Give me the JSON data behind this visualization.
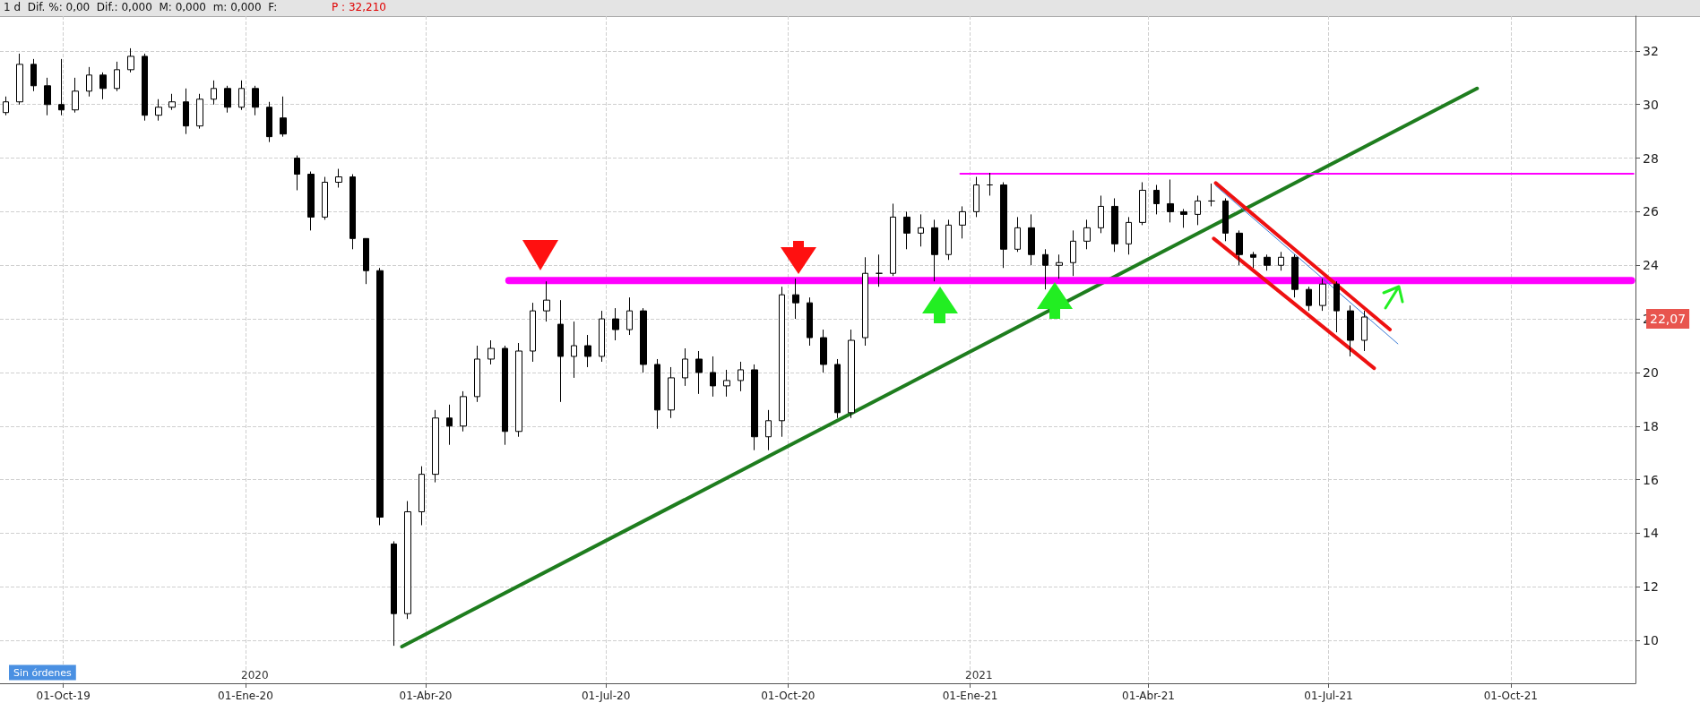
{
  "chart_data": {
    "type": "candlestick",
    "title": "1 d  Dif. %: 0,00  Dif.: 0,000  M: 0,000  m: 0,000  F:",
    "subtitle": "P : 32,210",
    "x": [
      "2019-09-02",
      "2019-09-09",
      "2019-09-16",
      "2019-09-23",
      "2019-09-30",
      "2019-10-07",
      "2019-10-14",
      "2019-10-21",
      "2019-10-28",
      "2019-11-04",
      "2019-11-11",
      "2019-11-18",
      "2019-11-25",
      "2019-12-02",
      "2019-12-09",
      "2019-12-16",
      "2019-12-23",
      "2019-12-30",
      "2020-01-06",
      "2020-01-13",
      "2020-01-20",
      "2020-01-27",
      "2020-02-03",
      "2020-02-10",
      "2020-02-17",
      "2020-02-24",
      "2020-03-02",
      "2020-03-09",
      "2020-03-16",
      "2020-03-23",
      "2020-03-30",
      "2020-04-06",
      "2020-04-13",
      "2020-04-20",
      "2020-04-27",
      "2020-05-04",
      "2020-05-11",
      "2020-05-18",
      "2020-05-25",
      "2020-06-01",
      "2020-06-08",
      "2020-06-15",
      "2020-06-22",
      "2020-06-29",
      "2020-07-06",
      "2020-07-13",
      "2020-07-20",
      "2020-07-27",
      "2020-08-03",
      "2020-08-10",
      "2020-08-17",
      "2020-08-24",
      "2020-08-31",
      "2020-09-07",
      "2020-09-14",
      "2020-09-21",
      "2020-09-28",
      "2020-10-05",
      "2020-10-12",
      "2020-10-19",
      "2020-10-26",
      "2020-11-02",
      "2020-11-09",
      "2020-11-16",
      "2020-11-23",
      "2020-11-30",
      "2020-12-07",
      "2020-12-14",
      "2020-12-21",
      "2020-12-28",
      "2021-01-04",
      "2021-01-11",
      "2021-01-18",
      "2021-01-25",
      "2021-02-01",
      "2021-02-08",
      "2021-02-15",
      "2021-02-22",
      "2021-03-01",
      "2021-03-08",
      "2021-03-15",
      "2021-03-22",
      "2021-03-29",
      "2021-04-05",
      "2021-04-12",
      "2021-04-19",
      "2021-04-26",
      "2021-05-03",
      "2021-05-10",
      "2021-05-17",
      "2021-05-24",
      "2021-05-31",
      "2021-06-07",
      "2021-06-14",
      "2021-06-21",
      "2021-06-28",
      "2021-07-05",
      "2021-07-12",
      "2021-07-19"
    ],
    "ohlc": [
      [
        29.7,
        30.3,
        29.6,
        30.1
      ],
      [
        30.1,
        31.9,
        30.0,
        31.5
      ],
      [
        31.5,
        31.7,
        30.5,
        30.7
      ],
      [
        30.7,
        31.0,
        29.6,
        30.0
      ],
      [
        30.0,
        31.7,
        29.6,
        29.8
      ],
      [
        29.8,
        31.0,
        29.7,
        30.5
      ],
      [
        30.5,
        31.4,
        30.3,
        31.1
      ],
      [
        31.1,
        31.2,
        30.2,
        30.6
      ],
      [
        30.6,
        31.6,
        30.5,
        31.3
      ],
      [
        31.3,
        32.1,
        31.2,
        31.8
      ],
      [
        31.8,
        31.9,
        29.4,
        29.6
      ],
      [
        29.6,
        30.2,
        29.4,
        29.9
      ],
      [
        29.9,
        30.4,
        29.8,
        30.1
      ],
      [
        30.1,
        30.6,
        28.9,
        29.2
      ],
      [
        29.2,
        30.4,
        29.1,
        30.2
      ],
      [
        30.2,
        30.9,
        30.0,
        30.6
      ],
      [
        30.6,
        30.7,
        29.7,
        29.9
      ],
      [
        29.9,
        30.9,
        29.8,
        30.6
      ],
      [
        30.6,
        30.7,
        29.6,
        29.9
      ],
      [
        29.9,
        30.1,
        28.6,
        28.8
      ],
      [
        29.5,
        30.3,
        28.8,
        28.9
      ],
      [
        28.0,
        28.1,
        26.8,
        27.4
      ],
      [
        27.4,
        27.5,
        25.3,
        25.8
      ],
      [
        25.8,
        27.3,
        25.7,
        27.1
      ],
      [
        27.1,
        27.6,
        26.9,
        27.3
      ],
      [
        27.3,
        27.4,
        24.6,
        25.0
      ],
      [
        25.0,
        25.0,
        23.3,
        23.8
      ],
      [
        23.8,
        23.9,
        14.3,
        14.6
      ],
      [
        13.6,
        13.7,
        9.8,
        11.0
      ],
      [
        11.0,
        15.2,
        10.8,
        14.8
      ],
      [
        14.8,
        16.5,
        14.3,
        16.2
      ],
      [
        16.2,
        18.6,
        15.9,
        18.3
      ],
      [
        18.3,
        18.8,
        17.3,
        18.0
      ],
      [
        18.0,
        19.3,
        17.8,
        19.1
      ],
      [
        19.1,
        21.0,
        18.9,
        20.5
      ],
      [
        20.5,
        21.2,
        20.3,
        20.9
      ],
      [
        20.9,
        21.0,
        17.3,
        17.8
      ],
      [
        17.8,
        21.1,
        17.6,
        20.8
      ],
      [
        20.8,
        22.6,
        20.4,
        22.3
      ],
      [
        22.3,
        23.4,
        21.9,
        22.7
      ],
      [
        21.8,
        22.7,
        18.9,
        20.6
      ],
      [
        20.6,
        21.9,
        19.8,
        21.0
      ],
      [
        21.0,
        21.4,
        20.2,
        20.6
      ],
      [
        20.6,
        22.3,
        20.4,
        22.0
      ],
      [
        22.0,
        22.4,
        21.2,
        21.6
      ],
      [
        21.6,
        22.8,
        21.4,
        22.3
      ],
      [
        22.3,
        22.4,
        20.0,
        20.3
      ],
      [
        20.3,
        20.5,
        17.9,
        18.6
      ],
      [
        18.6,
        20.2,
        18.3,
        19.8
      ],
      [
        19.8,
        20.9,
        19.5,
        20.5
      ],
      [
        20.5,
        20.8,
        19.2,
        20.0
      ],
      [
        20.0,
        20.6,
        19.1,
        19.5
      ],
      [
        19.5,
        20.1,
        19.1,
        19.7
      ],
      [
        19.7,
        20.4,
        19.3,
        20.1
      ],
      [
        20.1,
        20.3,
        17.1,
        17.6
      ],
      [
        17.6,
        18.6,
        17.1,
        18.2
      ],
      [
        18.2,
        23.2,
        17.6,
        22.9
      ],
      [
        22.9,
        23.5,
        22.0,
        22.6
      ],
      [
        22.6,
        22.8,
        21.0,
        21.3
      ],
      [
        21.3,
        21.6,
        20.0,
        20.3
      ],
      [
        20.3,
        20.5,
        18.3,
        18.5
      ],
      [
        18.5,
        21.6,
        18.3,
        21.2
      ],
      [
        21.3,
        24.3,
        21.0,
        23.7
      ],
      [
        23.7,
        24.4,
        23.2,
        23.7
      ],
      [
        23.7,
        26.3,
        23.6,
        25.8
      ],
      [
        25.8,
        26.0,
        24.6,
        25.2
      ],
      [
        25.2,
        25.9,
        24.7,
        25.4
      ],
      [
        25.4,
        25.7,
        23.4,
        24.4
      ],
      [
        24.4,
        25.7,
        24.2,
        25.5
      ],
      [
        25.5,
        26.2,
        25.0,
        26.0
      ],
      [
        26.0,
        27.3,
        25.8,
        27.0
      ],
      [
        27.0,
        27.45,
        26.6,
        27.0
      ],
      [
        27.0,
        27.1,
        23.9,
        24.6
      ],
      [
        24.6,
        25.8,
        24.5,
        25.4
      ],
      [
        25.4,
        25.9,
        24.0,
        24.4
      ],
      [
        24.4,
        24.6,
        23.1,
        24.0
      ],
      [
        24.0,
        24.4,
        23.5,
        24.1
      ],
      [
        24.1,
        25.3,
        23.6,
        24.9
      ],
      [
        24.9,
        25.7,
        24.6,
        25.4
      ],
      [
        25.4,
        26.6,
        25.2,
        26.2
      ],
      [
        26.2,
        26.5,
        24.5,
        24.8
      ],
      [
        24.8,
        25.8,
        24.4,
        25.6
      ],
      [
        25.6,
        27.1,
        25.5,
        26.8
      ],
      [
        26.8,
        27.0,
        25.9,
        26.3
      ],
      [
        26.3,
        27.2,
        25.6,
        26.0
      ],
      [
        26.0,
        26.1,
        25.4,
        25.9
      ],
      [
        25.9,
        26.6,
        25.5,
        26.4
      ],
      [
        26.4,
        27.05,
        26.2,
        26.4
      ],
      [
        26.4,
        26.5,
        24.9,
        25.2
      ],
      [
        25.2,
        25.3,
        24.0,
        24.4
      ],
      [
        24.4,
        24.5,
        23.9,
        24.3
      ],
      [
        24.3,
        24.4,
        23.8,
        24.0
      ],
      [
        24.0,
        24.5,
        23.8,
        24.3
      ],
      [
        24.3,
        24.4,
        22.8,
        23.1
      ],
      [
        23.1,
        23.2,
        22.3,
        22.5
      ],
      [
        22.5,
        23.5,
        22.3,
        23.3
      ],
      [
        23.3,
        23.4,
        21.5,
        22.3
      ],
      [
        22.3,
        22.5,
        20.6,
        21.2
      ],
      [
        21.2,
        22.3,
        20.8,
        22.07
      ]
    ],
    "series": [
      {
        "type": "line",
        "color": "#1e7d1e",
        "x": [
          "2020-03-20",
          "2021-09-14"
        ],
        "values": [
          9.77,
          30.6
        ]
      },
      {
        "type": "line",
        "color": "#ff00ff",
        "x": [
          "2020-05-13",
          "2021-12-01"
        ],
        "values": [
          23.43,
          23.43
        ]
      },
      {
        "type": "line",
        "color": "#ff00ff",
        "x": [
          "2020-12-27",
          "2021-12-02"
        ],
        "values": [
          27.42,
          27.42
        ]
      },
      {
        "type": "line",
        "color": "#ee1111",
        "x": [
          "2021-05-05",
          "2021-08-01"
        ],
        "values": [
          27.07,
          21.6
        ]
      },
      {
        "type": "line",
        "color": "#ee1111",
        "x": [
          "2021-05-04",
          "2021-07-24"
        ],
        "values": [
          25.0,
          20.16
        ]
      },
      {
        "type": "line",
        "color": "#3a7bd5",
        "x": [
          "2021-05-05",
          "2021-08-05"
        ],
        "values": [
          26.97,
          21.07
        ]
      }
    ],
    "xlim": [
      "2019-08-30",
      "2021-12-03"
    ],
    "xticks": [
      {
        "value": "2019-10-01",
        "label": "01-Oct-19"
      },
      {
        "value": "2020-01-01",
        "label": "01-Ene-20"
      },
      {
        "value": "2020-04-01",
        "label": "01-Abr-20"
      },
      {
        "value": "2020-07-01",
        "label": "01-Jul-20"
      },
      {
        "value": "2020-10-01",
        "label": "01-Oct-20"
      },
      {
        "value": "2021-01-01",
        "label": "01-Ene-21"
      },
      {
        "value": "2021-04-01",
        "label": "01-Abr-21"
      },
      {
        "value": "2021-07-01",
        "label": "01-Jul-21"
      },
      {
        "value": "2021-10-01",
        "label": "01-Oct-21"
      }
    ],
    "ylim": [
      8.4,
      33.3
    ],
    "yticks": [
      10,
      12,
      14,
      16,
      18,
      20,
      22,
      24,
      26,
      28,
      30,
      32
    ],
    "annotations": [
      "Sin órdenes",
      "2020",
      "2021",
      "22,07"
    ],
    "grid": true,
    "marker": "none",
    "line_style": "solid"
  }
}
